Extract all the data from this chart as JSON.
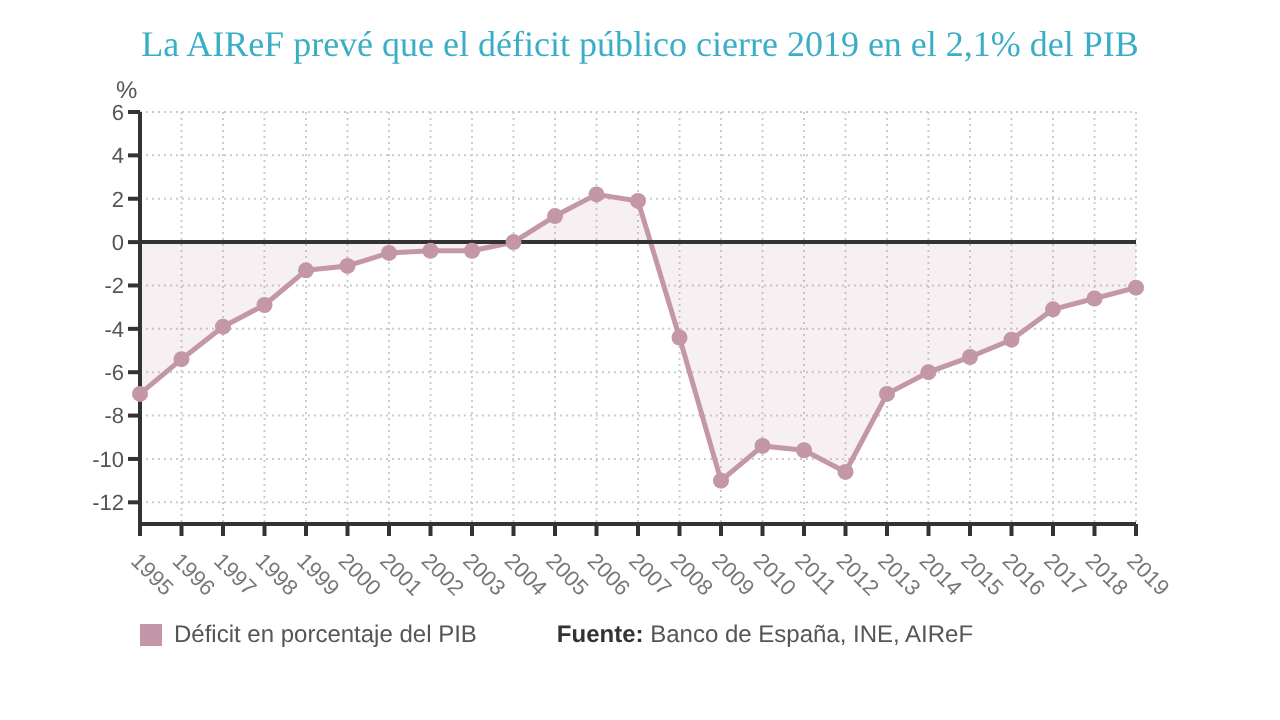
{
  "chart_data": {
    "type": "area",
    "title": "La AIReF prevé que el déficit público cierre 2019 en el 2,1% del PIB",
    "ylabel": "%",
    "categories": [
      "1995",
      "1996",
      "1997",
      "1998",
      "1999",
      "2000",
      "2001",
      "2002",
      "2003",
      "2004",
      "2005",
      "2006",
      "2007",
      "2008",
      "2009",
      "2010",
      "2011",
      "2012",
      "2013",
      "2014",
      "2015",
      "2016",
      "2017",
      "2018",
      "2019"
    ],
    "series": [
      {
        "name": "Déficit en porcentaje del PIB",
        "color": "#c497a8",
        "values": [
          -7.0,
          -5.4,
          -3.9,
          -2.9,
          -1.3,
          -1.1,
          -0.5,
          -0.4,
          -0.4,
          0.0,
          1.2,
          2.2,
          1.9,
          -4.4,
          -11.0,
          -9.4,
          -9.6,
          -10.6,
          -7.0,
          -6.0,
          -5.3,
          -4.5,
          -3.1,
          -2.6,
          -2.1
        ]
      }
    ],
    "ylim": [
      -13,
      6
    ],
    "yticks": [
      -12,
      -10,
      -8,
      -6,
      -4,
      -2,
      0,
      2,
      4,
      6
    ],
    "ref_lines": [
      {
        "axis": "y",
        "value": 0,
        "color": "#333333"
      }
    ],
    "grid": true,
    "legend": "bottom left",
    "marker": "circle",
    "annotations": [
      "Fuente: Banco de España, INE, AIReF"
    ]
  }
}
